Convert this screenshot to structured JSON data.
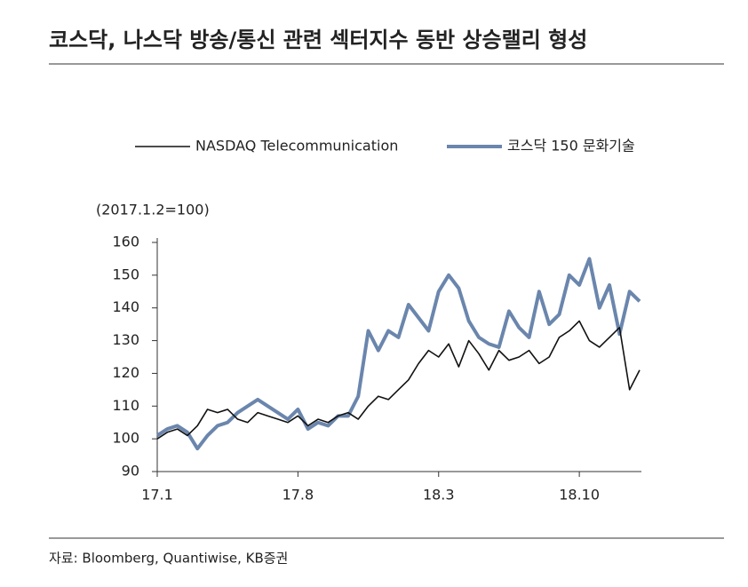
{
  "title": "코스닥, 나스닥 방송/통신 관련 섹터지수 동반 상승랠리 형성",
  "source": "자료: Bloomberg, Quantiwise, KB증권",
  "chart_data": {
    "type": "line",
    "y_label": "(2017.1.2=100)",
    "x": [
      0,
      0.5,
      1,
      1.5,
      2,
      2.5,
      3,
      3.5,
      4,
      4.5,
      5,
      5.5,
      6,
      6.5,
      7,
      7.5,
      8,
      8.5,
      9,
      9.5,
      10,
      10.5,
      11,
      11.5,
      12,
      12.5,
      13,
      13.5,
      14,
      14.5,
      15,
      15.5,
      16,
      16.5,
      17,
      17.5,
      18,
      18.5,
      19,
      19.5,
      20,
      20.5,
      21,
      21.5,
      22,
      22.5,
      23,
      23.5,
      24
    ],
    "series": [
      {
        "name": "NASDAQ Telecommunication",
        "color": "#111111",
        "width": 1.6,
        "values": [
          100,
          102,
          103,
          101,
          104,
          109,
          108,
          109,
          106,
          105,
          108,
          107,
          106,
          105,
          107,
          104,
          106,
          105,
          107,
          108,
          106,
          110,
          113,
          112,
          115,
          118,
          123,
          127,
          125,
          129,
          122,
          130,
          126,
          121,
          127,
          124,
          125,
          127,
          123,
          125,
          131,
          133,
          136,
          130,
          128,
          131,
          134,
          115,
          121
        ]
      },
      {
        "name": "코스닥 150 문화기술",
        "color": "#6b86ad",
        "width": 4,
        "values": [
          101,
          103,
          104,
          102,
          97,
          101,
          104,
          105,
          108,
          110,
          112,
          110,
          108,
          106,
          109,
          103,
          105,
          104,
          107,
          107,
          113,
          133,
          127,
          133,
          131,
          141,
          137,
          133,
          145,
          150,
          146,
          136,
          131,
          129,
          128,
          139,
          134,
          131,
          145,
          135,
          138,
          150,
          147,
          155,
          140,
          147,
          132,
          145,
          142
        ]
      }
    ],
    "xlim": [
      0,
      24
    ],
    "xticks": [
      {
        "value": 0,
        "label": "17.1"
      },
      {
        "value": 7,
        "label": "17.8"
      },
      {
        "value": 14,
        "label": "18.3"
      },
      {
        "value": 21,
        "label": "18.10"
      }
    ],
    "ylim": [
      90,
      160
    ],
    "yticks": [
      90,
      100,
      110,
      120,
      130,
      140,
      150,
      160
    ]
  }
}
